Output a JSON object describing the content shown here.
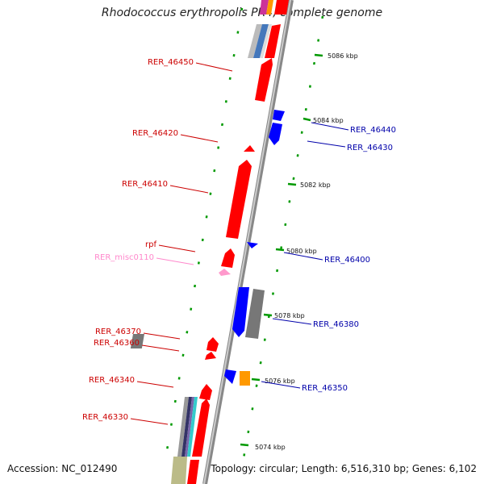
{
  "title": "Rhodococcus erythropolis PR4, complete genome",
  "footer": {
    "accession": "Accession: NC_012490",
    "topology": "Topology: circular; Length: 6,516,310 bp; Genes: 6,102"
  },
  "colors": {
    "forward": "#ff0000",
    "reverse": "#0000ff",
    "misc": "#ff99cc",
    "gray": "#777777",
    "orange": "#ff9900",
    "dots": "#009900",
    "backbone": "#999999"
  },
  "ticks": [
    {
      "label": "5086 kbp"
    },
    {
      "label": "5084 kbp"
    },
    {
      "label": "5082 kbp"
    },
    {
      "label": "5080 kbp"
    },
    {
      "label": "5078 kbp"
    },
    {
      "label": "5076 kbp"
    },
    {
      "label": "5074 kbp"
    }
  ],
  "left_labels": [
    {
      "text": "RER_46450",
      "color": "#cc0000"
    },
    {
      "text": "RER_46420",
      "color": "#cc0000"
    },
    {
      "text": "RER_46410",
      "color": "#cc0000"
    },
    {
      "text": "rpf",
      "color": "#cc0000"
    },
    {
      "text": "RER_misc0110",
      "color": "#ff88cc"
    },
    {
      "text": "RER_46370",
      "color": "#cc0000"
    },
    {
      "text": "RER_46360",
      "color": "#cc0000"
    },
    {
      "text": "RER_46340",
      "color": "#cc0000"
    },
    {
      "text": "RER_46330",
      "color": "#cc0000"
    }
  ],
  "right_labels": [
    {
      "text": "RER_46440",
      "color": "#0000aa"
    },
    {
      "text": "RER_46430",
      "color": "#0000aa"
    },
    {
      "text": "RER_46400",
      "color": "#0000aa"
    },
    {
      "text": "RER_46380",
      "color": "#0000aa"
    },
    {
      "text": "RER_46350",
      "color": "#0000aa"
    }
  ]
}
